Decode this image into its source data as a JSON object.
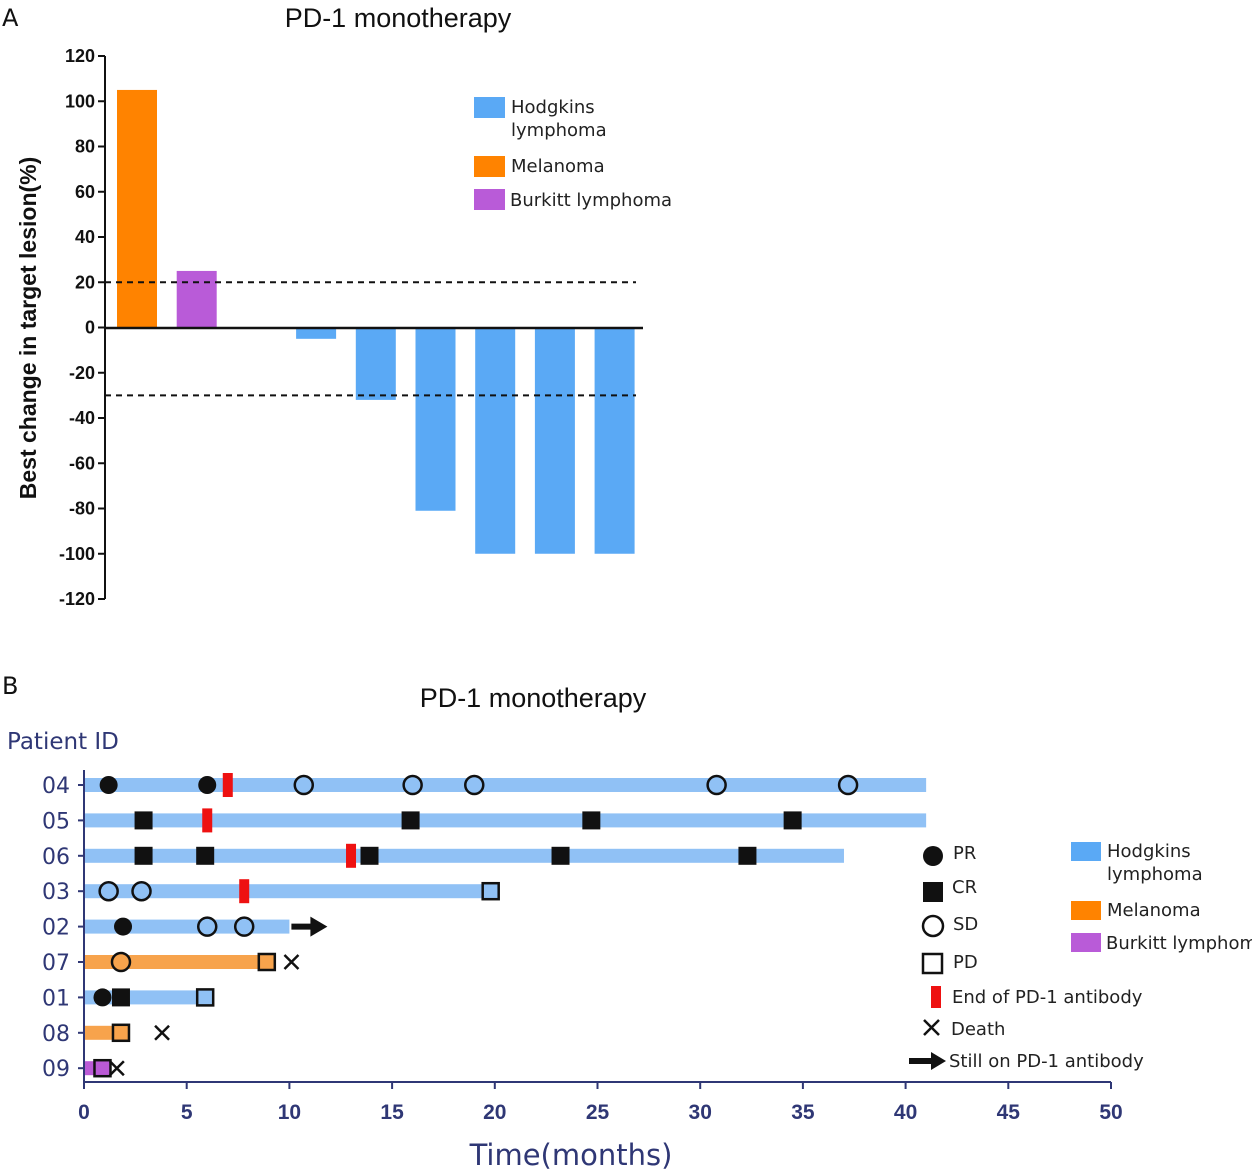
{
  "chart_data": [
    {
      "panel_label": "A",
      "type": "bar",
      "title": "PD-1 monotherapy",
      "ylabel": "Best change in target lesion(%)",
      "xlabel": "",
      "ylim": [
        -120,
        120
      ],
      "yticks": [
        120,
        100,
        80,
        60,
        40,
        20,
        0,
        -20,
        -40,
        -60,
        -80,
        -100,
        -120
      ],
      "reference_lines": [
        20,
        -30
      ],
      "legend": [
        {
          "name": "Hodgkins",
          "name_line2": "lymphoma",
          "color": "#5aa9f5"
        },
        {
          "name": "Melanoma",
          "color": "#ff8300"
        },
        {
          "name": "Burkitt lymphoma",
          "color": "#b95bd8"
        }
      ],
      "bars": [
        {
          "slot": 0,
          "value": 105,
          "type": "Melanoma",
          "color": "#ff8300"
        },
        {
          "slot": 1,
          "value": 25,
          "type": "Burkitt lymphoma",
          "color": "#b95bd8"
        },
        {
          "slot": 3,
          "value": -5,
          "type": "Hodgkins lymphoma",
          "color": "#5aa9f5"
        },
        {
          "slot": 4,
          "value": -32,
          "type": "Hodgkins lymphoma",
          "color": "#5aa9f5"
        },
        {
          "slot": 5,
          "value": -81,
          "type": "Hodgkins lymphoma",
          "color": "#5aa9f5"
        },
        {
          "slot": 6,
          "value": -100,
          "type": "Hodgkins lymphoma",
          "color": "#5aa9f5"
        },
        {
          "slot": 7,
          "value": -100,
          "type": "Hodgkins lymphoma",
          "color": "#5aa9f5"
        },
        {
          "slot": 8,
          "value": -100,
          "type": "Hodgkins lymphoma",
          "color": "#5aa9f5"
        }
      ]
    },
    {
      "panel_label": "B",
      "type": "swimmer",
      "title": "PD-1 monotherapy",
      "ylabel": "Patient ID",
      "xlabel": "Time(months)",
      "xlim": [
        0,
        50
      ],
      "xticks": [
        0,
        5,
        10,
        15,
        20,
        25,
        30,
        35,
        40,
        45,
        50
      ],
      "colors": {
        "hodgkins": "#90c1f5",
        "melanoma": "#f7a34c",
        "burkitt": "#bb5ad6",
        "end_marker": "#ee1111"
      },
      "legend_types": [
        {
          "name": "Hodgkins",
          "name_line2": "lymphoma",
          "color": "#5aa9f5"
        },
        {
          "name": "Melanoma",
          "color": "#ff8300"
        },
        {
          "name": "Burkitt lymphoma",
          "color": "#b95bd8"
        }
      ],
      "legend_symbols": [
        {
          "symbol": "filled-circle",
          "label": "PR"
        },
        {
          "symbol": "filled-square",
          "label": "CR"
        },
        {
          "symbol": "open-circle",
          "label": "SD"
        },
        {
          "symbol": "open-square",
          "label": "PD"
        },
        {
          "symbol": "red-bar",
          "label": "End of PD-1 antibody"
        },
        {
          "symbol": "cross",
          "label": "Death"
        },
        {
          "symbol": "arrow",
          "label": "Still on PD-1 antibody"
        }
      ],
      "patients": [
        {
          "id": "04",
          "type": "hodgkins",
          "duration": 41,
          "events": [
            {
              "t": 1.2,
              "s": "PR"
            },
            {
              "t": 6.0,
              "s": "PR"
            },
            {
              "t": 7.0,
              "s": "END"
            },
            {
              "t": 10.7,
              "s": "SD"
            },
            {
              "t": 16.0,
              "s": "SD"
            },
            {
              "t": 19.0,
              "s": "SD"
            },
            {
              "t": 30.8,
              "s": "SD"
            },
            {
              "t": 37.2,
              "s": "SD"
            }
          ]
        },
        {
          "id": "05",
          "type": "hodgkins",
          "duration": 41,
          "events": [
            {
              "t": 2.9,
              "s": "CR"
            },
            {
              "t": 6.0,
              "s": "END"
            },
            {
              "t": 15.9,
              "s": "CR"
            },
            {
              "t": 24.7,
              "s": "CR"
            },
            {
              "t": 34.5,
              "s": "CR"
            }
          ]
        },
        {
          "id": "06",
          "type": "hodgkins",
          "duration": 37,
          "events": [
            {
              "t": 2.9,
              "s": "CR"
            },
            {
              "t": 5.9,
              "s": "CR"
            },
            {
              "t": 13.0,
              "s": "END"
            },
            {
              "t": 13.9,
              "s": "CR"
            },
            {
              "t": 23.2,
              "s": "CR"
            },
            {
              "t": 32.3,
              "s": "CR"
            }
          ]
        },
        {
          "id": "03",
          "type": "hodgkins",
          "duration": 20,
          "events": [
            {
              "t": 1.2,
              "s": "SD"
            },
            {
              "t": 2.8,
              "s": "SD"
            },
            {
              "t": 7.8,
              "s": "END"
            },
            {
              "t": 19.8,
              "s": "PD"
            }
          ]
        },
        {
          "id": "02",
          "type": "hodgkins",
          "duration": 10,
          "arrow": true,
          "events": [
            {
              "t": 1.9,
              "s": "PR"
            },
            {
              "t": 6.0,
              "s": "SD"
            },
            {
              "t": 7.8,
              "s": "SD"
            }
          ]
        },
        {
          "id": "07",
          "type": "melanoma",
          "duration": 9,
          "events": [
            {
              "t": 1.8,
              "s": "SD"
            },
            {
              "t": 8.9,
              "s": "PD"
            },
            {
              "t": 10.1,
              "s": "DEATH"
            }
          ]
        },
        {
          "id": "01",
          "type": "hodgkins",
          "duration": 6,
          "events": [
            {
              "t": 0.9,
              "s": "PR"
            },
            {
              "t": 1.8,
              "s": "CR"
            },
            {
              "t": 5.9,
              "s": "PD"
            }
          ]
        },
        {
          "id": "08",
          "type": "melanoma",
          "duration": 1.8,
          "events": [
            {
              "t": 1.8,
              "s": "PD"
            },
            {
              "t": 3.8,
              "s": "DEATH"
            }
          ]
        },
        {
          "id": "09",
          "type": "burkitt",
          "duration": 1.0,
          "events": [
            {
              "t": 0.9,
              "s": "PD"
            },
            {
              "t": 1.6,
              "s": "DEATH"
            }
          ]
        }
      ]
    }
  ]
}
